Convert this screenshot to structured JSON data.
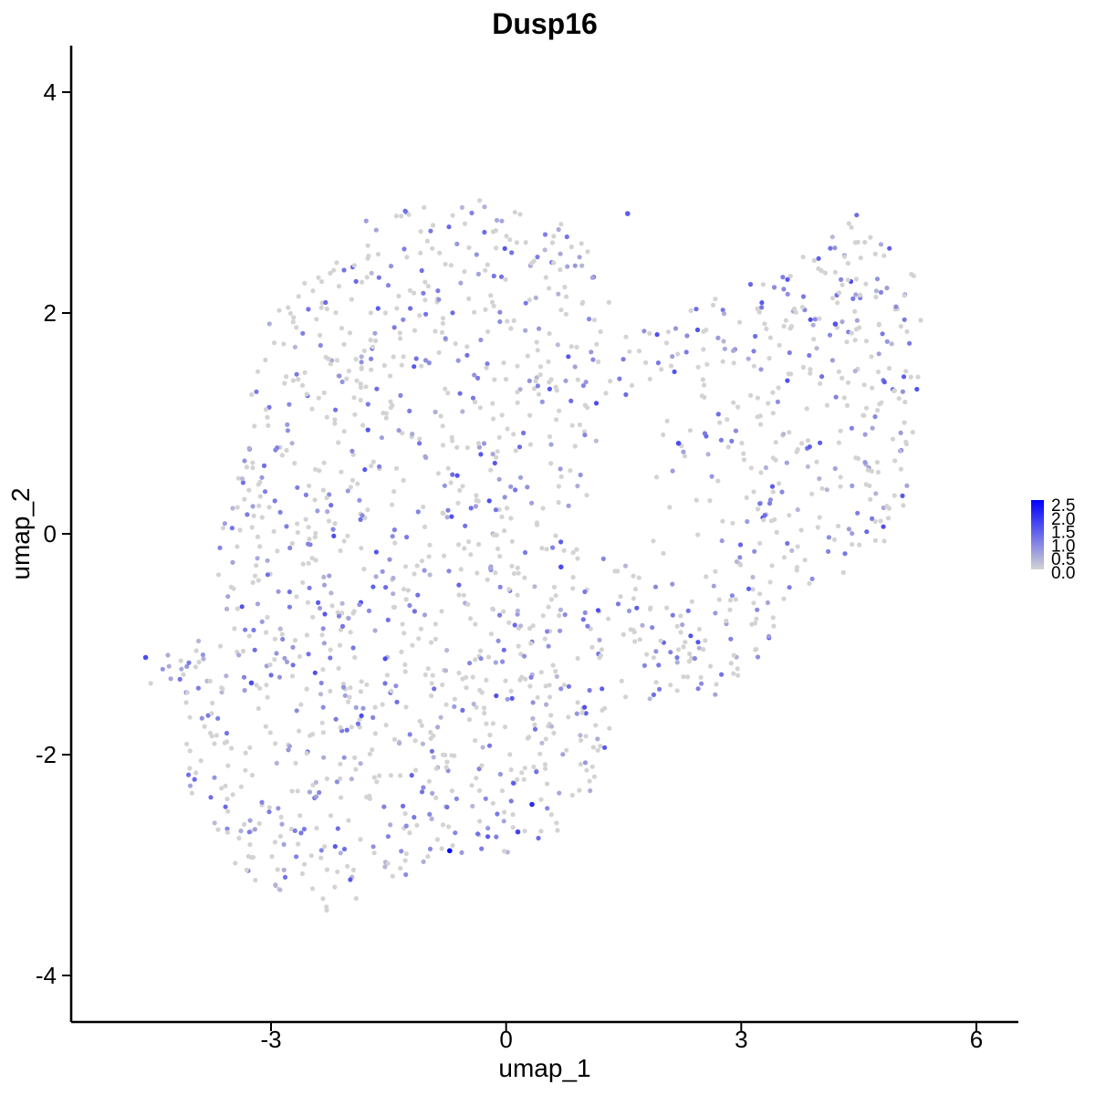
{
  "chart_data": {
    "type": "scatter",
    "title": "Dusp16",
    "xlabel": "umap_1",
    "ylabel": "umap_2",
    "xlim": [
      -5.4,
      6.5
    ],
    "ylim": [
      -4.35,
      4.45
    ],
    "x_ticks": [
      -3,
      0,
      3,
      6
    ],
    "y_ticks": [
      -4,
      -2,
      0,
      2,
      4
    ],
    "x_tick_labels": [
      "-3",
      "0",
      "3",
      "6"
    ],
    "y_tick_labels": [
      "-4",
      "-2",
      "0",
      "2",
      "4"
    ],
    "grid": false,
    "legend": {
      "placement": "right",
      "type": "colorbar",
      "range": [
        0,
        2.5
      ],
      "labels": [
        "2.5",
        "2.0",
        "1.5",
        "1.0",
        "0.5",
        "0.0"
      ],
      "low_color": "#d3d3d3",
      "high_color": "#0000ff"
    },
    "series": [
      {
        "marker_colors": {
          "zero": "#d3d3d3",
          "max": "#0000ff"
        },
        "highlight_points": [
          {
            "x": -0.72,
            "y": -2.87,
            "value": 2.5
          },
          {
            "x": 0.33,
            "y": -2.45,
            "value": 2.0
          },
          {
            "x": -4.6,
            "y": -1.12,
            "value": 1.6
          },
          {
            "x": 2.2,
            "y": 0.82,
            "value": 1.6
          },
          {
            "x": 0.7,
            "y": -0.3,
            "value": 1.6
          },
          {
            "x": -3.25,
            "y": -1.35,
            "value": 1.6
          },
          {
            "x": 1.55,
            "y": 2.9,
            "value": 1.4
          },
          {
            "x": 4.2,
            "y": 1.9,
            "value": 1.5
          },
          {
            "x": 0.15,
            "y": -2.7,
            "value": 1.7
          }
        ]
      }
    ],
    "regions": {
      "left_lobe": [
        [
          -4.7,
          -1.3
        ],
        [
          -4.2,
          -1.5
        ],
        [
          -4.0,
          -2.5
        ],
        [
          -3.3,
          -3.2
        ],
        [
          -2.3,
          -3.45
        ],
        [
          -1.3,
          -3.1
        ],
        [
          -0.5,
          -2.9
        ],
        [
          0.4,
          -2.95
        ],
        [
          1.0,
          -2.5
        ],
        [
          1.4,
          -1.7
        ],
        [
          2.0,
          -1.5
        ],
        [
          2.6,
          -1.5
        ],
        [
          3.2,
          -1.2
        ],
        [
          3.7,
          -0.6
        ],
        [
          4.3,
          -0.4
        ],
        [
          5.0,
          0.0
        ],
        [
          5.25,
          0.8
        ],
        [
          5.3,
          1.9
        ],
        [
          5.2,
          2.4
        ],
        [
          4.8,
          2.7
        ],
        [
          4.4,
          3.0
        ],
        [
          4.0,
          2.6
        ],
        [
          3.5,
          2.4
        ],
        [
          2.8,
          2.2
        ],
        [
          2.2,
          2.0
        ],
        [
          1.6,
          1.9
        ],
        [
          1.2,
          2.2
        ],
        [
          1.0,
          2.75
        ],
        [
          0.4,
          2.9
        ],
        [
          -0.2,
          3.05
        ],
        [
          -1.0,
          3.0
        ],
        [
          -1.8,
          2.85
        ],
        [
          -2.2,
          2.7
        ],
        [
          -2.5,
          2.5
        ],
        [
          -2.9,
          2.2
        ],
        [
          -3.1,
          1.8
        ],
        [
          -3.25,
          1.3
        ],
        [
          -3.4,
          0.6
        ],
        [
          -3.6,
          0.1
        ],
        [
          -3.75,
          -0.5
        ],
        [
          -4.0,
          -0.9
        ],
        [
          -4.3,
          -1.05
        ]
      ],
      "hole": [
        [
          0.9,
          0.3
        ],
        [
          1.6,
          1.3
        ],
        [
          2.4,
          1.3
        ],
        [
          3.0,
          0.8
        ],
        [
          3.2,
          0.2
        ],
        [
          2.8,
          -0.3
        ],
        [
          2.0,
          -0.4
        ],
        [
          1.3,
          -0.3
        ]
      ]
    }
  }
}
